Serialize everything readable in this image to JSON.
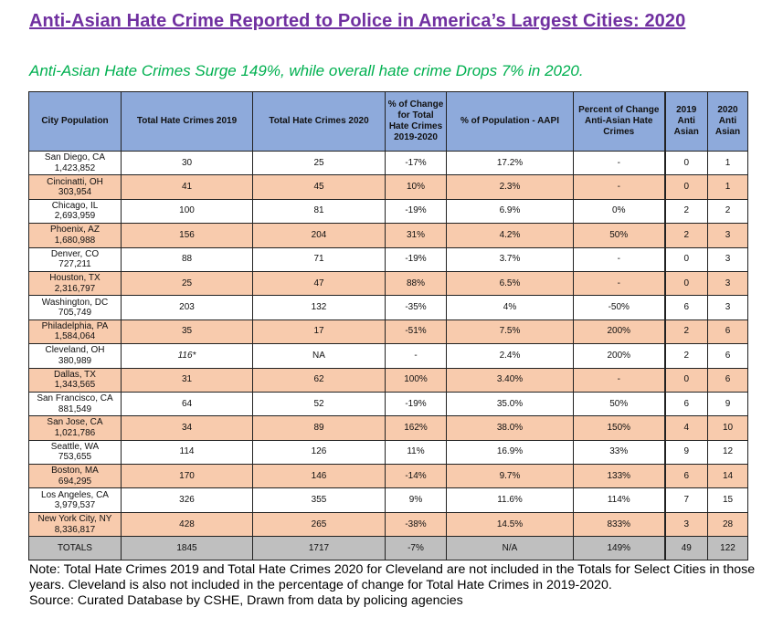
{
  "title": "Anti-Asian Hate Crime Reported to Police in America’s Largest Cities: 2020",
  "subtitle": "Anti-Asian Hate Crimes Surge 149%, while overall hate crime Drops 7% in 2020.",
  "headers": [
    "City Population",
    "Total Hate Crimes 2019",
    "Total Hate Crimes 2020",
    "% of Change for Total Hate Crimes 2019-2020",
    "% of Population - AAPI",
    "Percent of Change Anti-Asian Hate Crimes",
    "2019 Anti Asian",
    "2020 Anti Asian"
  ],
  "rows": [
    {
      "city": "San Diego, CA",
      "pop": "1,423,852",
      "t2019": "30",
      "t2020": "25",
      "chg": "-17%",
      "aapi": "17.2%",
      "aachg": "-",
      "a2019": "0",
      "a2020": "1"
    },
    {
      "city": "Cincinatti, OH",
      "pop": "303,954",
      "t2019": "41",
      "t2020": "45",
      "chg": "10%",
      "aapi": "2.3%",
      "aachg": "-",
      "a2019": "0",
      "a2020": "1"
    },
    {
      "city": "Chicago, IL",
      "pop": "2,693,959",
      "t2019": "100",
      "t2020": "81",
      "chg": "-19%",
      "aapi": "6.9%",
      "aachg": "0%",
      "a2019": "2",
      "a2020": "2"
    },
    {
      "city": "Phoenix, AZ",
      "pop": "1,680,988",
      "t2019": "156",
      "t2020": "204",
      "chg": "31%",
      "aapi": "4.2%",
      "aachg": "50%",
      "a2019": "2",
      "a2020": "3"
    },
    {
      "city": "Denver, CO",
      "pop": "727,211",
      "t2019": "88",
      "t2020": "71",
      "chg": "-19%",
      "aapi": "3.7%",
      "aachg": "-",
      "a2019": "0",
      "a2020": "3"
    },
    {
      "city": "Houston, TX",
      "pop": "2,316,797",
      "t2019": "25",
      "t2020": "47",
      "chg": "88%",
      "aapi": "6.5%",
      "aachg": "-",
      "a2019": "0",
      "a2020": "3"
    },
    {
      "city": "Washington, DC",
      "pop": "705,749",
      "t2019": "203",
      "t2020": "132",
      "chg": "-35%",
      "aapi": "4%",
      "aachg": "-50%",
      "a2019": "6",
      "a2020": "3"
    },
    {
      "city": "Philadelphia, PA",
      "pop": "1,584,064",
      "t2019": "35",
      "t2020": "17",
      "chg": "-51%",
      "aapi": "7.5%",
      "aachg": "200%",
      "a2019": "2",
      "a2020": "6"
    },
    {
      "city": "Cleveland, OH",
      "pop": "380,989",
      "t2019": "116*",
      "t2020": "NA",
      "chg": "-",
      "aapi": "2.4%",
      "aachg": "200%",
      "a2019": "2",
      "a2020": "6"
    },
    {
      "city": "Dallas, TX",
      "pop": "1,343,565",
      "t2019": "31",
      "t2020": "62",
      "chg": "100%",
      "aapi": "3.40%",
      "aachg": "-",
      "a2019": "0",
      "a2020": "6"
    },
    {
      "city": "San Francisco, CA",
      "pop": "881,549",
      "t2019": "64",
      "t2020": "52",
      "chg": "-19%",
      "aapi": "35.0%",
      "aachg": "50%",
      "a2019": "6",
      "a2020": "9"
    },
    {
      "city": "San Jose, CA",
      "pop": "1,021,786",
      "t2019": "34",
      "t2020": "89",
      "chg": "162%",
      "aapi": "38.0%",
      "aachg": "150%",
      "a2019": "4",
      "a2020": "10"
    },
    {
      "city": "Seattle, WA",
      "pop": "753,655",
      "t2019": "114",
      "t2020": "126",
      "chg": "11%",
      "aapi": "16.9%",
      "aachg": "33%",
      "a2019": "9",
      "a2020": "12"
    },
    {
      "city": "Boston, MA",
      "pop": "694,295",
      "t2019": "170",
      "t2020": "146",
      "chg": "-14%",
      "aapi": "9.7%",
      "aachg": "133%",
      "a2019": "6",
      "a2020": "14"
    },
    {
      "city": "Los Angeles, CA",
      "pop": "3,979,537",
      "t2019": "326",
      "t2020": "355",
      "chg": "9%",
      "aapi": "11.6%",
      "aachg": "114%",
      "a2019": "7",
      "a2020": "15"
    },
    {
      "city": "New York City, NY",
      "pop": "8,336,817",
      "t2019": "428",
      "t2020": "265",
      "chg": "-38%",
      "aapi": "14.5%",
      "aachg": "833%",
      "a2019": "3",
      "a2020": "28"
    }
  ],
  "totals": {
    "label": "TOTALS",
    "t2019": "1845",
    "t2020": "1717",
    "chg": "-7%",
    "aapi": "N/A",
    "aachg": "149%",
    "a2019": "49",
    "a2020": "122"
  },
  "note": "Note: Total Hate Crimes 2019 and Total Hate Crimes 2020 for Cleveland are not included in the Totals for Select Cities in those years.  Cleveland is also not included in the percentage of change for Total Hate Crimes in 2019-2020.",
  "source": "Source: Curated Database by CSHE, Drawn from data by policing agencies"
}
